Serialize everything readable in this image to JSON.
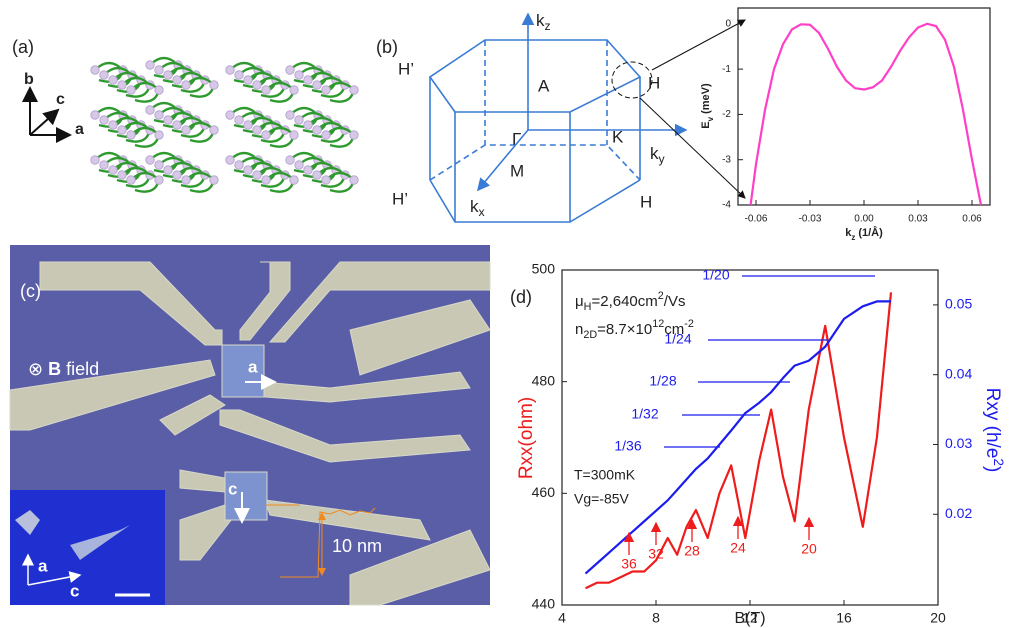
{
  "panel_labels": [
    "(a)",
    "(b)",
    "(c)",
    "(d)"
  ],
  "panel_a": {
    "axes": [
      "b",
      "c",
      "a"
    ]
  },
  "panel_b": {
    "points": [
      "H’",
      "A",
      "H",
      "Γ",
      "K",
      "M",
      "H’",
      "H"
    ],
    "axes": [
      [
        {
          "text": "k"
        },
        {
          "text": "z",
          "sub": true
        }
      ],
      [
        {
          "text": "k"
        },
        {
          "text": "y",
          "sub": true
        }
      ],
      [
        {
          "text": "k"
        },
        {
          "text": "x",
          "sub": true
        }
      ]
    ]
  },
  "panel_c": {
    "field": [
      {
        "text": "⊗ "
      },
      {
        "text": "B",
        "bold": true
      },
      {
        "text": " field"
      }
    ],
    "directions": [
      "a",
      "c"
    ],
    "step": "10 nm",
    "inset_axes": [
      "a",
      "c"
    ]
  },
  "chart_data": [
    {
      "type": "line",
      "xlabel": [
        {
          "text": "k"
        },
        {
          "text": "z",
          "sub": true
        },
        {
          "text": " (1/Å)"
        }
      ],
      "ylabel": [
        {
          "text": "E"
        },
        {
          "text": "v",
          "sub": true
        },
        {
          "text": " (meV)"
        }
      ],
      "x": [
        -0.063,
        -0.06,
        -0.055,
        -0.05,
        -0.045,
        -0.04,
        -0.035,
        -0.03,
        -0.025,
        -0.02,
        -0.015,
        -0.01,
        -0.005,
        0,
        0.005,
        0.01,
        0.015,
        0.02,
        0.025,
        0.03,
        0.035,
        0.04,
        0.045,
        0.05,
        0.055,
        0.06,
        0.065
      ],
      "series": [
        {
          "color": "#ff3fc8",
          "values": [
            -4,
            -3.1,
            -1.9,
            -1.0,
            -0.45,
            -0.12,
            -0.01,
            -0.02,
            -0.2,
            -0.55,
            -0.95,
            -1.25,
            -1.42,
            -1.45,
            -1.4,
            -1.25,
            -0.95,
            -0.6,
            -0.3,
            -0.08,
            0,
            -0.05,
            -0.35,
            -0.95,
            -1.9,
            -3.0,
            -4
          ]
        }
      ],
      "xlim": [
        -0.07,
        0.07
      ],
      "ylim": [
        -4,
        0.35
      ],
      "xticks": [
        -0.06,
        -0.03,
        {
          "value": 0,
          "label": "0.00"
        },
        0.03,
        0.06
      ],
      "yticks": [
        0,
        -1,
        -2,
        -3,
        -4
      ]
    },
    {
      "type": "line",
      "xlabel": "B(T)",
      "ylabel": "Rxx(ohm)",
      "y2label": [
        {
          "text": "Rxy (h/e"
        },
        {
          "text": "2",
          "sup": true
        },
        {
          "text": ")"
        }
      ],
      "x": [
        5,
        5.5,
        6,
        6.5,
        7,
        7.5,
        8,
        8.5,
        8.9,
        9.3,
        9.7,
        10.2,
        10.7,
        11.2,
        11.8,
        12.4,
        12.9,
        13.4,
        13.9,
        14.5,
        15.2,
        16,
        16.8,
        17.4,
        18
      ],
      "series": [
        {
          "color": "#ee1c1c",
          "values": [
            443,
            444,
            444,
            445,
            446,
            446,
            448,
            452,
            449,
            454,
            457,
            452,
            460,
            465,
            452,
            466,
            475,
            463,
            455,
            475,
            490,
            470,
            454,
            470,
            496
          ]
        },
        {
          "color": "#1c1cee",
          "axis": "y2",
          "values": [
            0.0115,
            0.013,
            0.0145,
            0.016,
            0.0175,
            0.019,
            0.0205,
            0.022,
            0.0235,
            0.025,
            0.0265,
            0.028,
            0.03,
            0.032,
            0.0345,
            0.036,
            0.0375,
            0.0395,
            0.0413,
            0.042,
            0.044,
            0.048,
            0.0498,
            0.0505,
            0.0505
          ]
        }
      ],
      "xlim": [
        4,
        20
      ],
      "ylim": [
        440,
        500
      ],
      "y2lim": [
        0.007,
        0.055
      ],
      "xticks": [
        4,
        8,
        12,
        16,
        20
      ],
      "yticks": [
        440,
        460,
        480,
        500
      ],
      "y2ticks": [
        0.02,
        0.03,
        0.04,
        0.05
      ],
      "annotations": {
        "mobility": [
          {
            "text": "μ"
          },
          {
            "text": "H",
            "sub": true
          },
          {
            "text": "=2,640cm"
          },
          {
            "text": "2",
            "sup": true
          },
          {
            "text": "/Vs"
          }
        ],
        "density": [
          {
            "text": "n"
          },
          {
            "text": "2D",
            "sub": true
          },
          {
            "text": "=8.7×10"
          },
          {
            "text": "12",
            "sup": true
          },
          {
            "text": "cm"
          },
          {
            "text": "-2",
            "sup": true
          }
        ],
        "conditions": [
          "T=300mK",
          "Vg=-85V"
        ],
        "plateaus": [
          "1/20",
          "1/24",
          "1/28",
          "1/32",
          "1/36"
        ],
        "fillings": [
          "36",
          "32",
          "28",
          "24",
          "20"
        ]
      }
    }
  ]
}
